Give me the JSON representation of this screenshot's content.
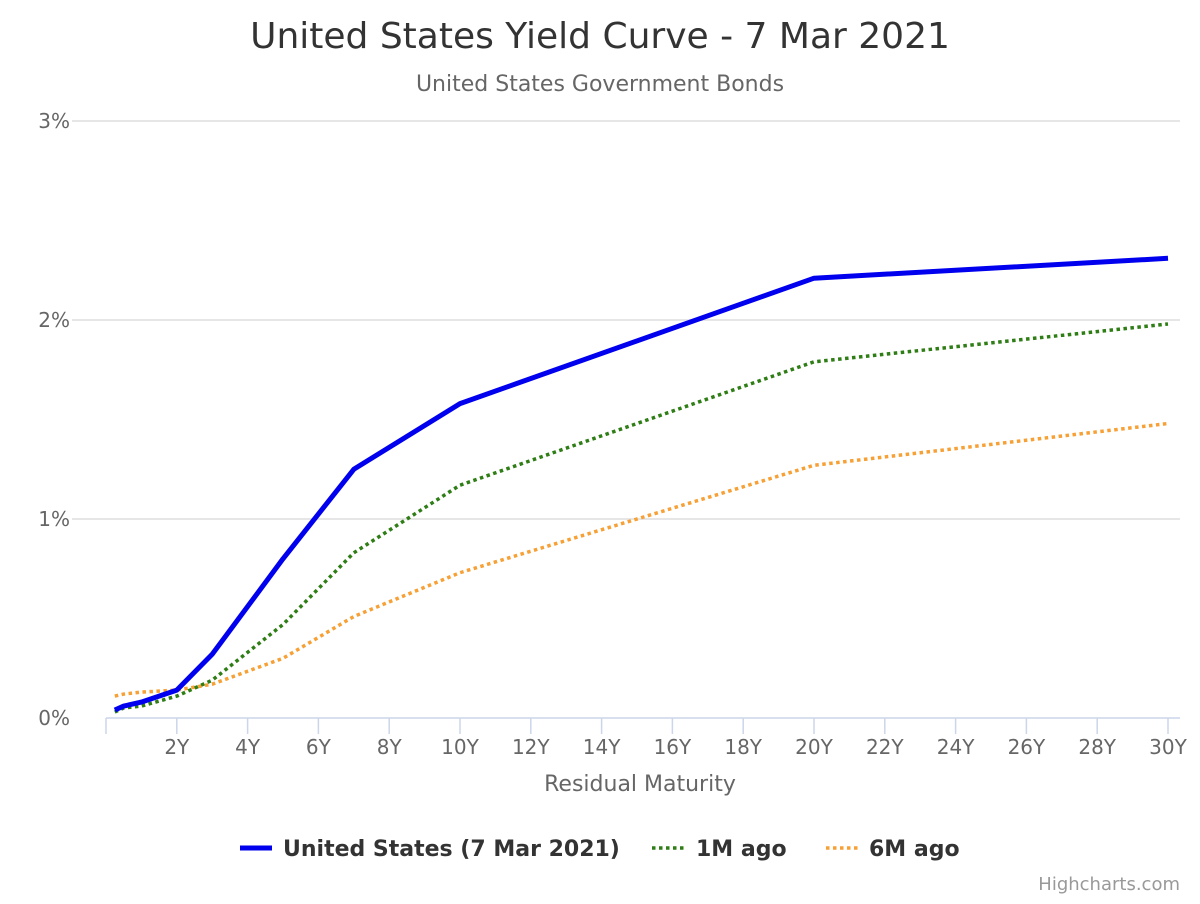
{
  "chart_data": {
    "type": "line",
    "title": "United States Yield Curve - 7 Mar 2021",
    "subtitle": "United States Government Bonds",
    "xlabel": "Residual Maturity",
    "ylabel": "",
    "xlim": [
      0,
      30
    ],
    "ylim": [
      0,
      3
    ],
    "x_ticks": [
      2,
      4,
      6,
      8,
      10,
      12,
      14,
      16,
      18,
      20,
      22,
      24,
      26,
      28,
      30
    ],
    "x_tick_labels": [
      "2Y",
      "4Y",
      "6Y",
      "8Y",
      "10Y",
      "12Y",
      "14Y",
      "16Y",
      "18Y",
      "20Y",
      "22Y",
      "24Y",
      "26Y",
      "28Y",
      "30Y"
    ],
    "y_ticks": [
      0,
      1,
      2,
      3
    ],
    "y_tick_labels": [
      "0%",
      "1%",
      "2%",
      "3%"
    ],
    "grid": true,
    "legend_position": "bottom-center",
    "credits": "Highcharts.com",
    "x": [
      0.25,
      0.5,
      1,
      2,
      3,
      5,
      7,
      10,
      20,
      30
    ],
    "series": [
      {
        "name": "United States (7 Mar 2021)",
        "color": "#0000ee",
        "style": "solid",
        "values": [
          0.04,
          0.06,
          0.08,
          0.14,
          0.32,
          0.8,
          1.25,
          1.58,
          2.21,
          2.31
        ]
      },
      {
        "name": "1M ago",
        "color": "#2e7d15",
        "style": "dotted",
        "values": [
          0.03,
          0.05,
          0.06,
          0.11,
          0.19,
          0.47,
          0.83,
          1.17,
          1.79,
          1.98
        ]
      },
      {
        "name": "6M ago",
        "color": "#f7a035",
        "style": "dotted",
        "values": [
          0.11,
          0.12,
          0.13,
          0.14,
          0.17,
          0.3,
          0.51,
          0.73,
          1.27,
          1.48
        ]
      }
    ]
  }
}
